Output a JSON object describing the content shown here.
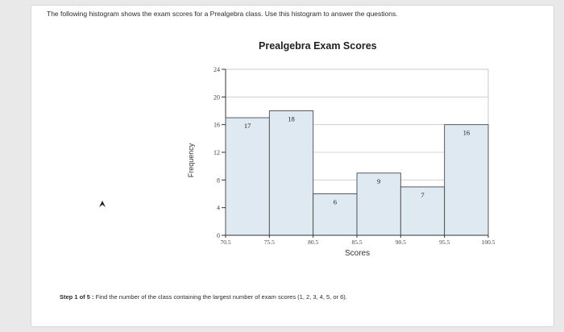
{
  "question_text": "The following histogram shows the exam scores for a Prealgebra class. Use this histogram to answer the questions.",
  "step_prefix": "Step 1 of 5 :",
  "step_text": "Find the number of the class containing the largest number of exam scores (1, 2, 3, 4, 5, or 6).",
  "colors": {
    "bar_fill": "#dfe9f1",
    "bar_stroke": "#4a4a4a",
    "grid": "#c8c8c8"
  },
  "chart_data": {
    "type": "bar",
    "title": "Prealgebra Exam Scores",
    "xlabel": "Scores",
    "ylabel": "Frequency",
    "bin_edges": [
      70.5,
      75.5,
      80.5,
      85.5,
      90.5,
      95.5,
      100.5
    ],
    "bin_edge_labels": [
      "70.5",
      "75.5",
      "80.5",
      "85.5",
      "90.5",
      "95.5",
      "100.5"
    ],
    "values": [
      17,
      18,
      6,
      9,
      7,
      16
    ],
    "value_labels": [
      "17",
      "18",
      "6",
      "9",
      "7",
      "16"
    ],
    "yticks": [
      0,
      4,
      8,
      12,
      16,
      20,
      24
    ],
    "ylim": [
      0,
      24
    ],
    "grid": true
  }
}
